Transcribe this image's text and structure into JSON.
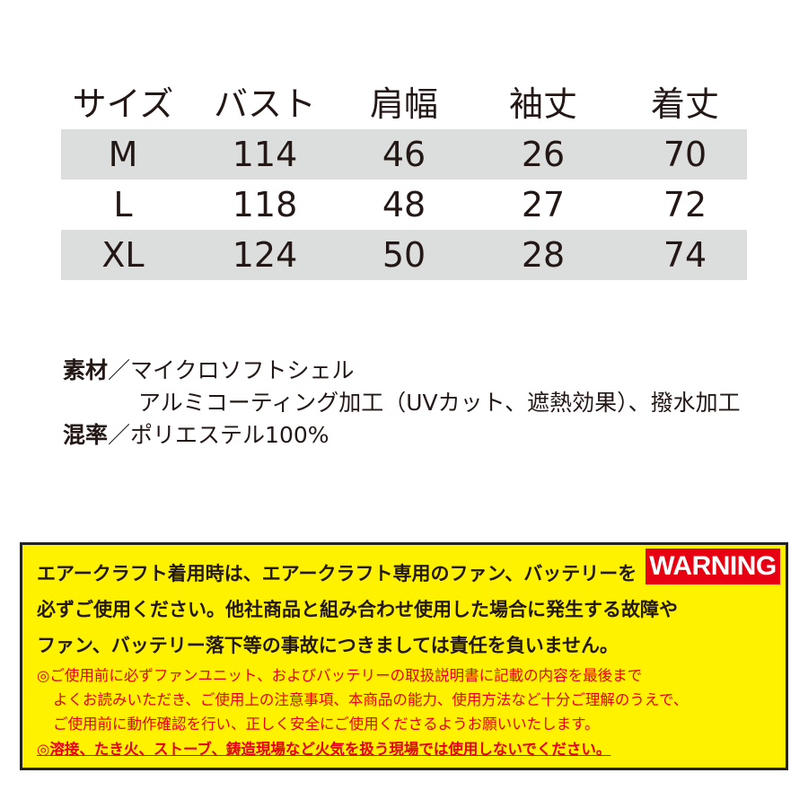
{
  "size_table": {
    "headers": [
      "サイズ",
      "バスト",
      "肩幅",
      "袖丈",
      "着丈"
    ],
    "rows": [
      [
        "M",
        "114",
        "46",
        "26",
        "70"
      ],
      [
        "L",
        "118",
        "48",
        "27",
        "72"
      ],
      [
        "XL",
        "124",
        "50",
        "28",
        "74"
      ]
    ]
  },
  "spec": {
    "material_label": "素材",
    "separator": "／",
    "material_line1": "マイクロソフトシェル",
    "material_line2": "アルミコーティング加工（UVカット、遮熱効果）、撥水加工",
    "blend_label": "混率",
    "blend_value": "ポリエステル100%"
  },
  "warning": {
    "badge": "WARNING",
    "main_lines": [
      "エアークラフト着用時は、エアークラフト専用のファン、バッテリーを",
      "必ずご使用ください。他社商品と組み合わせ使用した場合に発生する故障や",
      "ファン、バッテリー落下等の事故につきましては責任を負いません。"
    ],
    "note_lines": [
      "◎ご使用前に必ずファンユニット、およびバッテリーの取扱説明書に記載の内容を最後まで",
      "よくお読みいただき、ご使用上の注意事項、本商品の能力、使用方法など十分ご理解のうえで、",
      "ご使用前に動作確認を行い、正しく安全にご使用くださるようお願いいたします。",
      "◎溶接、たき火、ストーブ、鋳造現場など火気を扱う現場では使用しないでください。"
    ],
    "colors": {
      "background": "#fff200",
      "badge": "#e60012",
      "note_text": "#e60012"
    }
  }
}
